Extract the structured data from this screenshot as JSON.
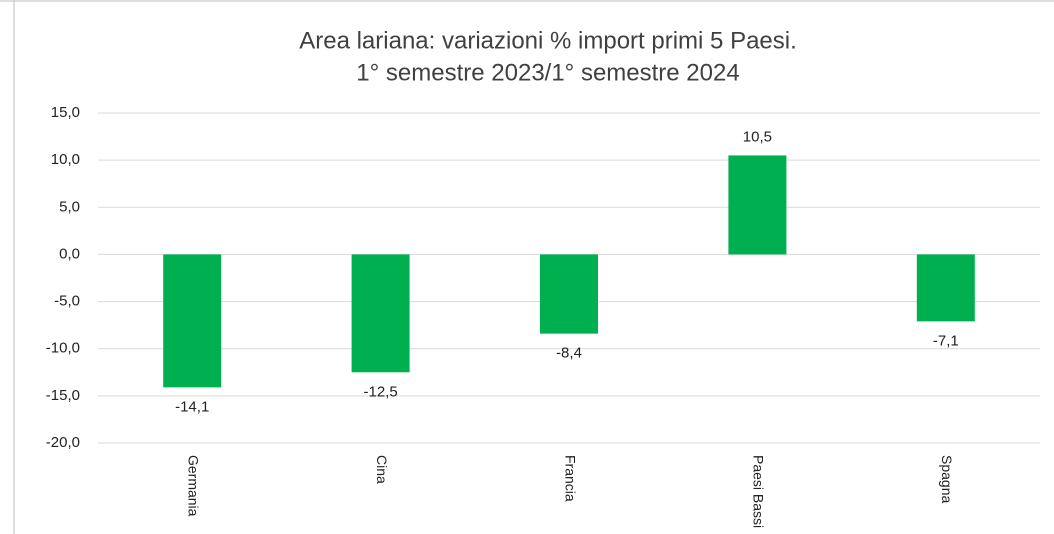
{
  "chart_data": {
    "type": "bar",
    "title": [
      "Area lariana: variazioni % import primi 5 Paesi.",
      "1° semestre 2023/1° semestre 2024"
    ],
    "categories": [
      "Germania",
      "Cina",
      "Francia",
      "Paesi Bassi",
      "Spagna"
    ],
    "values": [
      -14.1,
      -12.5,
      -8.4,
      10.5,
      -7.1
    ],
    "value_labels": [
      "-14,1",
      "-12,5",
      "-8,4",
      "10,5",
      "-7,1"
    ],
    "color": "#00b050",
    "ylim": [
      -20,
      15
    ],
    "yticks": [
      {
        "value": -20,
        "label": "-20,0"
      },
      {
        "value": -15,
        "label": "-15,0"
      },
      {
        "value": -10,
        "label": "-10,0"
      },
      {
        "value": -5,
        "label": "-5,0"
      },
      {
        "value": 0,
        "label": "0,0"
      },
      {
        "value": 5,
        "label": "5,0"
      },
      {
        "value": 10,
        "label": "10,0"
      },
      {
        "value": 15,
        "label": "15,0"
      }
    ],
    "grid": true
  }
}
